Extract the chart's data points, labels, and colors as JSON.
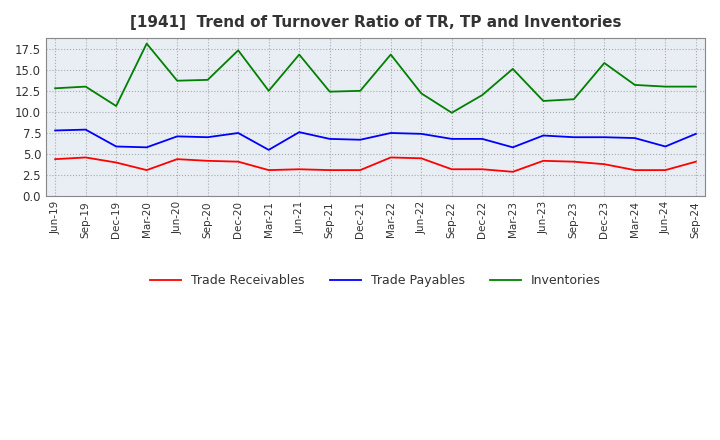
{
  "title": "[1941]  Trend of Turnover Ratio of TR, TP and Inventories",
  "ylim": [
    0,
    18.75
  ],
  "yticks": [
    0.0,
    2.5,
    5.0,
    7.5,
    10.0,
    12.5,
    15.0,
    17.5
  ],
  "ytick_labels": [
    "0.0",
    "2.5",
    "5.0",
    "7.5",
    "10.0",
    "12.5",
    "15.0",
    "17.5"
  ],
  "legend_labels": [
    "Trade Receivables",
    "Trade Payables",
    "Inventories"
  ],
  "legend_colors": [
    "#ff0000",
    "#0000ff",
    "#008000"
  ],
  "x_labels": [
    "Jun-19",
    "Sep-19",
    "Dec-19",
    "Mar-20",
    "Jun-20",
    "Sep-20",
    "Dec-20",
    "Mar-21",
    "Jun-21",
    "Sep-21",
    "Dec-21",
    "Mar-22",
    "Jun-22",
    "Sep-22",
    "Dec-22",
    "Mar-23",
    "Jun-23",
    "Sep-23",
    "Dec-23",
    "Mar-24",
    "Jun-24",
    "Sep-24"
  ],
  "trade_receivables": [
    4.4,
    4.6,
    4.0,
    3.1,
    4.4,
    4.2,
    4.1,
    3.1,
    3.2,
    3.1,
    3.1,
    4.6,
    4.5,
    3.2,
    3.2,
    2.9,
    4.2,
    4.1,
    3.8,
    3.1,
    3.1,
    4.1
  ],
  "trade_payables": [
    7.8,
    7.9,
    5.9,
    5.8,
    7.1,
    7.0,
    7.5,
    5.5,
    7.6,
    6.8,
    6.7,
    7.5,
    7.4,
    6.8,
    6.8,
    5.8,
    7.2,
    7.0,
    7.0,
    6.9,
    5.9,
    7.4
  ],
  "inventories": [
    12.8,
    13.0,
    10.7,
    18.1,
    13.7,
    13.8,
    17.3,
    12.5,
    16.8,
    12.4,
    12.5,
    16.8,
    12.2,
    9.9,
    12.0,
    15.1,
    11.3,
    11.5,
    15.8,
    13.2,
    13.0,
    13.0
  ],
  "background_color": "#ffffff",
  "plot_bg_color": "#e8eef4",
  "grid_color": "#aaaaaa",
  "line_color_tr": "#ff0000",
  "line_color_tp": "#0000ff",
  "line_color_inv": "#008000"
}
